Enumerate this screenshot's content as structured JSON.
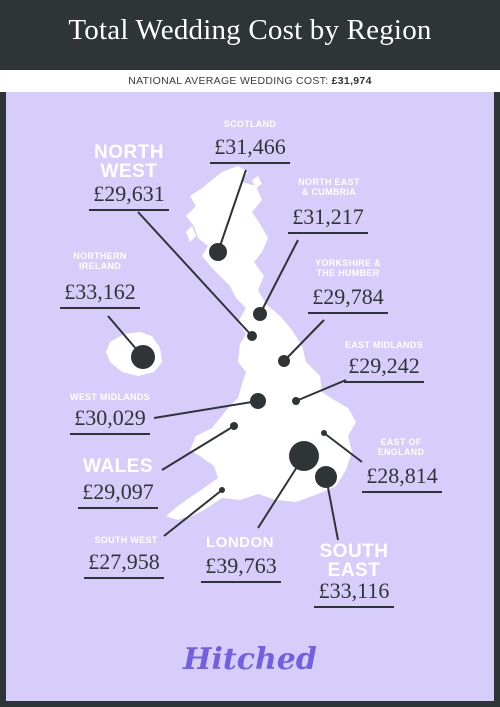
{
  "title": "Total Wedding Cost by Region",
  "subtitle_prefix": "NATIONAL AVERAGE WEDDING COST:",
  "subtitle_value": "£31,974",
  "regions": {
    "scotland": {
      "name": "SCOTLAND",
      "cost": "£31,466"
    },
    "north_west": {
      "name1": "NORTH",
      "name2": "WEST",
      "cost": "£29,631"
    },
    "north_east": {
      "name1": "NORTH EAST",
      "name2": "& CUMBRIA",
      "cost": "£31,217"
    },
    "northern_ireland": {
      "name1": "NORTHERN",
      "name2": "IRELAND",
      "cost": "£33,162"
    },
    "yorkshire": {
      "name1": "YORKSHIRE &",
      "name2": "THE HUMBER",
      "cost": "£29,784"
    },
    "east_midlands": {
      "name": "EAST MIDLANDS",
      "cost": "£29,242"
    },
    "west_midlands": {
      "name": "WEST MIDLANDS",
      "cost": "£30,029"
    },
    "east_england": {
      "name1": "EAST OF",
      "name2": "ENGLAND",
      "cost": "£28,814"
    },
    "wales": {
      "name": "WALES",
      "cost": "£29,097"
    },
    "south_west": {
      "name": "SOUTH WEST",
      "cost": "£27,958"
    },
    "london": {
      "name": "LONDON",
      "cost": "£39,763"
    },
    "south_east": {
      "name1": "SOUTH",
      "name2": "EAST",
      "cost": "£33,116"
    }
  },
  "logo": "Hitched",
  "colors": {
    "background": "#d7cdfb",
    "dark": "#2f3436",
    "land": "#ffffff",
    "logo": "#7360e0"
  }
}
